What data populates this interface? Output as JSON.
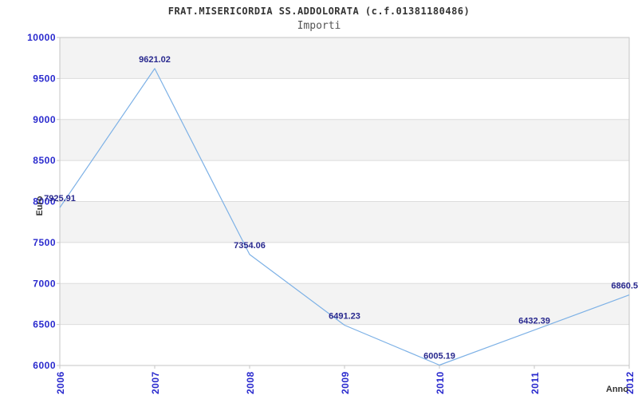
{
  "chart_data": {
    "type": "line",
    "title": "FRAT.MISERICORDIA SS.ADDOLORATA (c.f.01381180486)",
    "subtitle": "Importi",
    "xlabel": "Anno",
    "ylabel": "Euro",
    "categories": [
      "2006",
      "2007",
      "2008",
      "2009",
      "2010",
      "2011",
      "2012"
    ],
    "series": [
      {
        "name": "Importi",
        "values": [
          7925.91,
          9621.02,
          7354.06,
          6491.23,
          6005.19,
          6432.39,
          6860.5
        ]
      }
    ],
    "point_labels": [
      "7925.91",
      "9621.02",
      "7354.06",
      "6491.23",
      "6005.19",
      "6432.39",
      "6860.5"
    ],
    "last_point_label_clipped_at_right_edge": true,
    "ylim": [
      6000,
      10000
    ],
    "ytick_step": 500,
    "yticks": [
      "6000",
      "6500",
      "7000",
      "7500",
      "8000",
      "8500",
      "9000",
      "9500",
      "10000"
    ],
    "legend": "none",
    "grid": "horizontal gridlines with alternating shaded bands",
    "colors": {
      "line": "#7db1e6",
      "tick_labels": "#2a2ace",
      "point_labels": "#28288e",
      "band": "#f3f3f3",
      "gridline": "#dcdcdc",
      "plot_border": "#c6c6c6",
      "title": "#333333",
      "subtitle": "#555555",
      "axis_titles": "#333333",
      "background": "#ffffff"
    }
  }
}
